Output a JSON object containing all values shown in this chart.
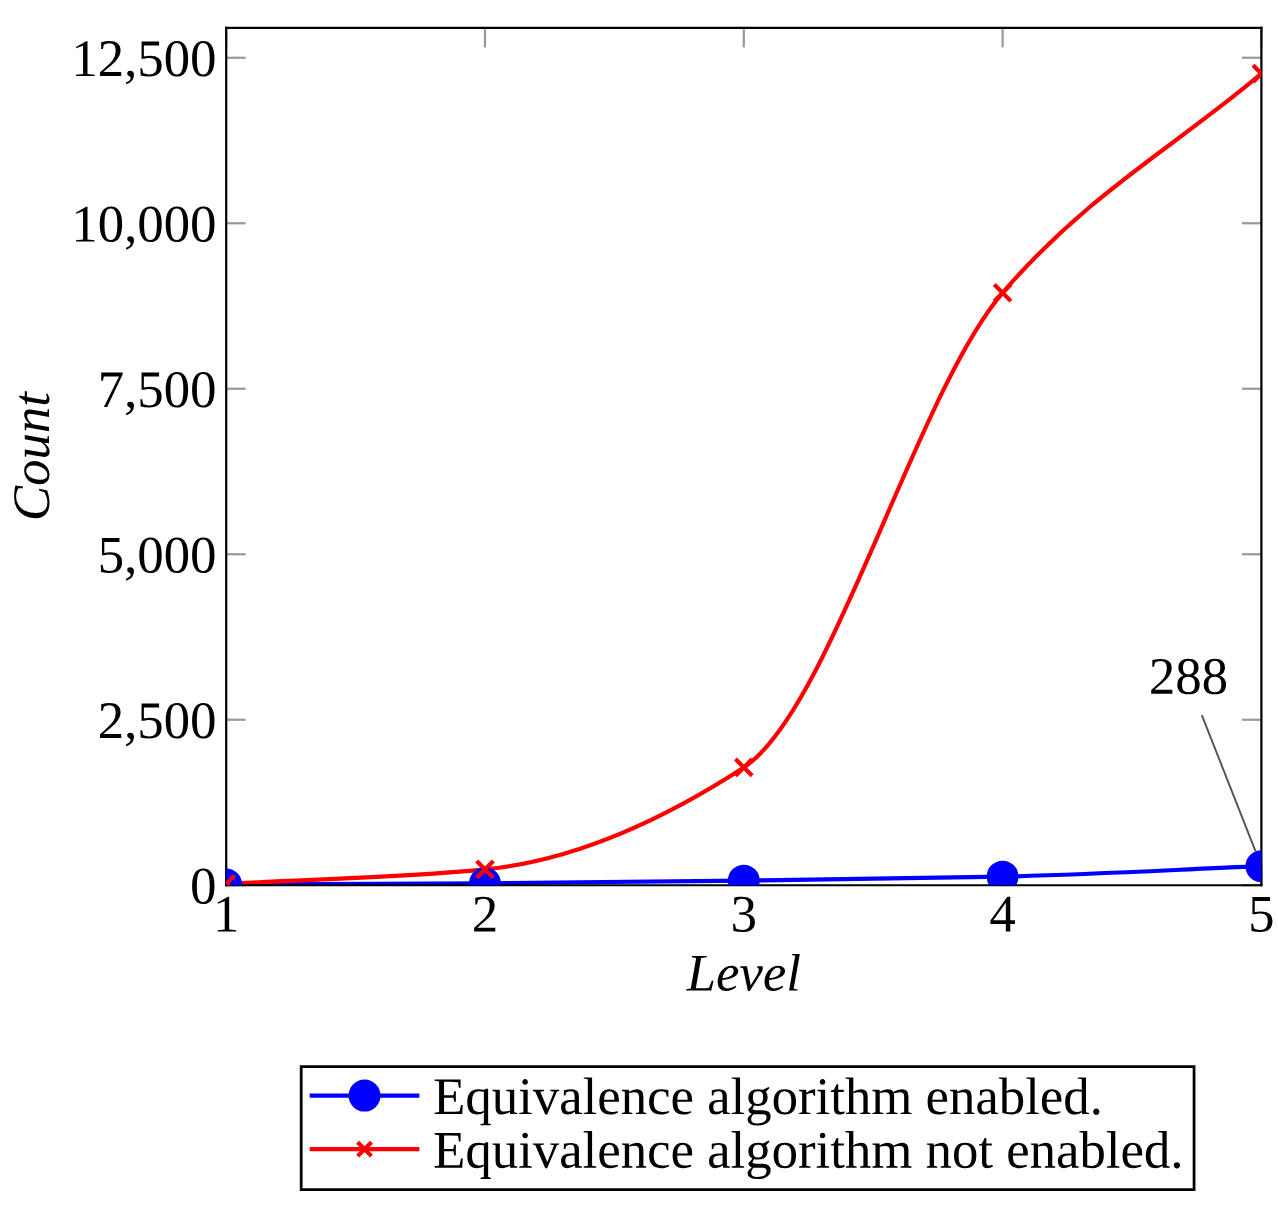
{
  "chart_data": {
    "type": "line",
    "xlabel": "Level",
    "ylabel": "Count",
    "x": [
      1,
      2,
      3,
      4,
      5
    ],
    "series": [
      {
        "name": "Equivalence algorithm enabled.",
        "color": "#0000ff",
        "marker": "circle",
        "values": [
          10,
          30,
          70,
          130,
          288
        ]
      },
      {
        "name": "Equivalence algorithm not enabled.",
        "color": "#ff0000",
        "marker": "cross",
        "values": [
          20,
          240,
          1780,
          8950,
          12260
        ]
      }
    ],
    "xlim": [
      1,
      5
    ],
    "ylim": [
      0,
      12950
    ],
    "xticks": [
      1,
      2,
      3,
      4,
      5
    ],
    "yticks": [
      {
        "value": 0,
        "label": "0"
      },
      {
        "value": 2500,
        "label": "2,500"
      },
      {
        "value": 5000,
        "label": "5,000"
      },
      {
        "value": 7500,
        "label": "7,500"
      },
      {
        "value": 10000,
        "label": "10,000"
      },
      {
        "value": 12500,
        "label": "12,500"
      }
    ],
    "annotations": [
      {
        "text": "288",
        "x": 5,
        "y": 288
      }
    ],
    "legend": "bottom",
    "grid": false,
    "line_style": "solid"
  }
}
